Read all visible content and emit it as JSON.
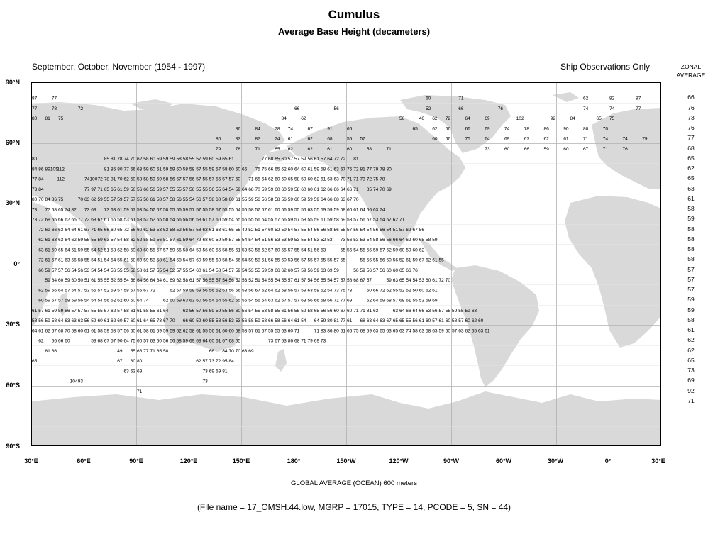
{
  "title": "Cumulus",
  "subtitle": "Average Base Height (decameters)",
  "season": "September, October, November (1954 - 1997)",
  "source": "Ship Observations Only",
  "zonal_header": [
    "ZONAL",
    "AVERAGE"
  ],
  "global_average": "GLOBAL AVERAGE (OCEAN)   600 meters",
  "file_info": "(File name = 17_OMSH.44.low, MGRP = 17015, TYPE = 14, PCODE = 5, SN = 44)",
  "lat_labels": [
    "90°N",
    "60°N",
    "30°N",
    "0°",
    "30°S",
    "60°S",
    "90°S"
  ],
  "lon_labels": [
    "30°E",
    "60°E",
    "90°E",
    "120°E",
    "150°E",
    "180°",
    "150°W",
    "120°W",
    "90°W",
    "60°W",
    "30°W",
    "0°",
    "30°E"
  ],
  "land_color": "#d9d9d9",
  "grid_color": "#b0b0b0",
  "zonal_averages": [
    "66",
    "76",
    "73",
    "76",
    "77",
    "68",
    "65",
    "62",
    "65",
    "63",
    "61",
    "58",
    "59",
    "58",
    "58",
    "58",
    "58",
    "57",
    "57",
    "57",
    "59",
    "59",
    "58",
    "61",
    "62",
    "62",
    "65",
    "73",
    "69",
    "92",
    "71"
  ],
  "cell_rows": [
    {
      "row": 1,
      "cells": [
        [
          "c",
          0,
          87
        ],
        [
          "c",
          3,
          77
        ],
        [
          "c",
          60,
          60
        ],
        [
          "c",
          65,
          71
        ],
        [
          "c",
          84,
          62
        ],
        [
          "c",
          88,
          82
        ],
        [
          "c",
          92,
          87
        ]
      ]
    },
    {
      "row": 2,
      "cells": [
        [
          "c",
          0,
          77
        ],
        [
          "c",
          3,
          78
        ],
        [
          "c",
          7,
          72
        ],
        [
          "c",
          40,
          66
        ],
        [
          "c",
          46,
          56
        ],
        [
          "c",
          60,
          52
        ],
        [
          "c",
          65,
          66
        ],
        [
          "c",
          71,
          76
        ],
        [
          "c",
          84,
          74
        ],
        [
          "c",
          88,
          74
        ],
        [
          "c",
          92,
          77
        ]
      ]
    },
    {
      "row": 3,
      "cells": [
        [
          "c",
          0,
          80
        ],
        [
          "c",
          2,
          81
        ],
        [
          "c",
          4,
          75
        ],
        [
          "c",
          38,
          84
        ],
        [
          "c",
          41,
          62
        ],
        [
          "c",
          56,
          56
        ],
        [
          "c",
          59,
          46
        ],
        [
          "c",
          61,
          62
        ],
        [
          "c",
          63,
          72
        ],
        [
          "c",
          66,
          64
        ],
        [
          "c",
          69,
          69
        ],
        [
          "c",
          74,
          102
        ],
        [
          "c",
          79,
          92
        ],
        [
          "c",
          82,
          84
        ],
        [
          "c",
          86,
          65
        ],
        [
          "c",
          88,
          75
        ]
      ]
    },
    {
      "row": 4,
      "cells": [
        [
          "c",
          31,
          86
        ],
        [
          "c",
          34,
          84
        ],
        [
          "c",
          37,
          78
        ],
        [
          "c",
          39,
          74
        ],
        [
          "c",
          42,
          67
        ],
        [
          "c",
          45,
          91
        ],
        [
          "c",
          48,
          66
        ],
        [
          "c",
          58,
          65
        ],
        [
          "c",
          61,
          62
        ],
        [
          "c",
          63,
          66
        ],
        [
          "c",
          66,
          66
        ],
        [
          "c",
          69,
          69
        ],
        [
          "c",
          72,
          74
        ],
        [
          "c",
          75,
          78
        ],
        [
          "c",
          78,
          86
        ],
        [
          "c",
          81,
          90
        ],
        [
          "c",
          84,
          80
        ],
        [
          "c",
          87,
          70
        ]
      ]
    },
    {
      "row": 5,
      "cells": [
        [
          "c",
          28,
          80
        ],
        [
          "c",
          31,
          82
        ],
        [
          "c",
          34,
          82
        ],
        [
          "c",
          37,
          74
        ],
        [
          "c",
          39,
          61
        ],
        [
          "c",
          42,
          62
        ],
        [
          "c",
          45,
          68
        ],
        [
          "c",
          48,
          55
        ],
        [
          "c",
          50,
          57
        ],
        [
          "c",
          61,
          60
        ],
        [
          "c",
          63,
          66
        ],
        [
          "c",
          66,
          75
        ],
        [
          "c",
          69,
          64
        ],
        [
          "c",
          72,
          69
        ],
        [
          "c",
          75,
          67
        ],
        [
          "c",
          78,
          62
        ],
        [
          "c",
          81,
          61
        ],
        [
          "c",
          84,
          71
        ],
        [
          "c",
          87,
          74
        ],
        [
          "c",
          90,
          74
        ],
        [
          "c",
          93,
          79
        ]
      ]
    },
    {
      "row": 6,
      "cells": [
        [
          "c",
          28,
          79
        ],
        [
          "c",
          31,
          78
        ],
        [
          "c",
          34,
          71
        ],
        [
          "c",
          37,
          65
        ],
        [
          "c",
          39,
          62
        ],
        [
          "c",
          42,
          62
        ],
        [
          "c",
          45,
          61
        ],
        [
          "c",
          48,
          60
        ],
        [
          "c",
          51,
          58
        ],
        [
          "c",
          54,
          71
        ],
        [
          "c",
          69,
          73
        ],
        [
          "c",
          72,
          60
        ],
        [
          "c",
          75,
          66
        ],
        [
          "c",
          78,
          59
        ],
        [
          "c",
          81,
          60
        ],
        [
          "c",
          84,
          67
        ],
        [
          "c",
          87,
          71
        ],
        [
          "c",
          90,
          76
        ]
      ]
    }
  ],
  "dense_rows": [
    "80|                                85 81 78 74 70 62 58 60 59 59 59 58 58 55 57 59 60 59 65 61               77 68 65 60 57 57 59 56 61 57 64 72 72    81",
    "84 86 89 105 112                    81 85 80 77 66 63 59 60 61 59 59 60 58 58 57 55 59 57 58 60 60 66      75 75 66 65 62 60 64 60 61 59 58 61 63 67 75 72 81 77 79 78 80",
    "77 84       112           74 100 72 78 81 70 62 59 58 58 59 59 58 56 57 57 56 57 55 57 56 57 57 60      71 65 64 62 60 60 65 58 59 60 62 61 63 63 70 71 71 73 72 75 78",
    "73 84                     77 97 71 65 65 61 59 56 56 66 56 59 57 55 55 57 56 55 55 56 55 64 54 59 64   68 70 59 59 60 60 59 58 60 60 61 62 66 66 64 66 71     85 74 70 69",
    "80 70   84 86 75        70 63 62 59 55 57 59 57 57 55 56 61 58 57 58 56 55 54 56 57 58 60 58 60 61 55  59 56 56 58 58 56 59 60 59 59 59 64 66 68 63 67 70",
    "   73    72 68 65 74 82    73 63    73 63 61 59 57 53 54 57 57 58 55 56 59 57 57 55 58 57 55 55 54 56 58 57 57 61 60  56 59 55 56 63 55 59 59 59 58 60 61 64 66 63 74",
    "   73 72   68 65 66 62 65   77 72 68   67 61 56 58 53 51 53 52 52 55 58 54 56 56 56 58 61 57 60 59 54 55 56 55 56 54 55 57 56 59 57 58 55 59 61 59 58 59 58 57 56 57 53 54 57 62 71",
    "     72 69 66 63 64 64 61 67 71 65 66 60 65 72 56 60 62 53 53 53 58 52 56 57 58 63 61 63 61 65 55 49 52 51 57 60 52 59 54 57 55 54 56 56 58 56 55 57 56 54 54 56 56 54 51 57 62 67 56",
    "      62 61 63 63 64 62 59 55 55 59 63 57 54 58 62 52 58 59 56 51 57 61 59 64 72 68 60 59 59 57 55 54 54 54 51 56 53 53 59 53 55 54 53 52 53    73 56 53 53 54 58 56 56 66 64 62 60 65 58 59",
    "      63 61 59 65 64 61 59 55 54 52 51 58 62 58 59 60 60 55 57 57 59 56 58 64 59 56 60 56 58 55 61 53 53 56 62 57 60 55 57 55 54 51 56 53       55 56 54 55 56 59 57 62 59 60 59 60 62",
    "     72 61 57 61 63 56 58 55 54 51 54 54 55 61 58 59 59 58 58 61 54 58 54 57 60 59 55 60 58 54 56 54 59 58 51 56 55 60 53 56 57 55 57 55 55 57 55       56 56 55 56 60 56 52 61 59 67 62 61 55",
    "     60 59 57 57 56 54 56 53 54 54 54 56 55 55 58 58 61 57 55 54 52 57 55 54 60 61 54 58 54 57 59 54 53 55 59 59 66 62 60 57 59 56 59 63 69 59       56 59 56 57 56 60 60 65 66 76",
    "       59 64 60 59 60 50 51 61 55 55 52 55 54 56 64 56 64 64 61 69 62 58 61 57 56 55 57 54 56 52 53 52 51 54 55 54 55 57 61 57 54 56 55 54 57 57 58 68 67 57       59 63 65 54 54 53 60 61 72 70",
    "     62 59 66 64 57 54 57 53 55 57 52 59 57 58 57 56 67 72       62 57 59 59 59 56 56 52 53 56 56 58 56 67 62 64 62 58 56 57 59 63 58 52 54 73 75 73       60 66 72 62 55 52 52 50 60 62 61",
    "     60 59 57 57 58 59 56 54 54 54 56 62 62 60 60 64 74       62 60 59 63 63 60 56 54 54 55 62 55 56 54 56 64 63 62 57 57 57 63 56 66 58 66 71 77 69       62 64 59 68 57 68 61 55 53 59 69",
    "  61 57 61 59 59 56 57 57 57 55 55 57 62 57 58 61 61 58 55 61 64       63 56 57 56 59 59 55 56 60 56 54 55 53 58 55 61 56 55 59 58 65 56 56 60 67 60 71 71 81 63       63 64 66 64 66 53 56 57 55 59 55 59 63",
    "58 56 59 58 64 63 63 63 56 59 60 61 62 60 57 60 61 64 65 73 67 70    66 60 59 60 55 58 56 53 53 56 58 59 58 66 58 56 64 61 54    64 59 80 81 77 61    68 63 64 63 67 65 65 55 56 61 60 57 61 60 58 57 60 62 60",
    "64 61 62 67 68 70 58 60 61 61 58 59 58 57 56 60 61 58 61 59 59 59 62 62 58 61 55 56 61 60 60 58 58 57 61 57 55 55 63 60 71       71 83 86 80 61 66 75 68 59 63 65 63 65 63 74 58 63 58 63 59 60 57 63 62 65 63 61",
    "      62    66 66 60          53 68 67 57 90 64 75 60 57 63 60 56 56 58 59 69 63 64 60 61 67 68 65             73 67 63 86 68 71 79 69 73",
    "         81 66                            49    55 66 77 71 65 58                   66    84 70 70 63 69",
    "   65                                      67    80 80                           62 57 73 72 95 84",
    "                                           63 63 69                              73 69 69 81",
    "                    104 93                                                         73",
    "                                                 71"
  ]
}
